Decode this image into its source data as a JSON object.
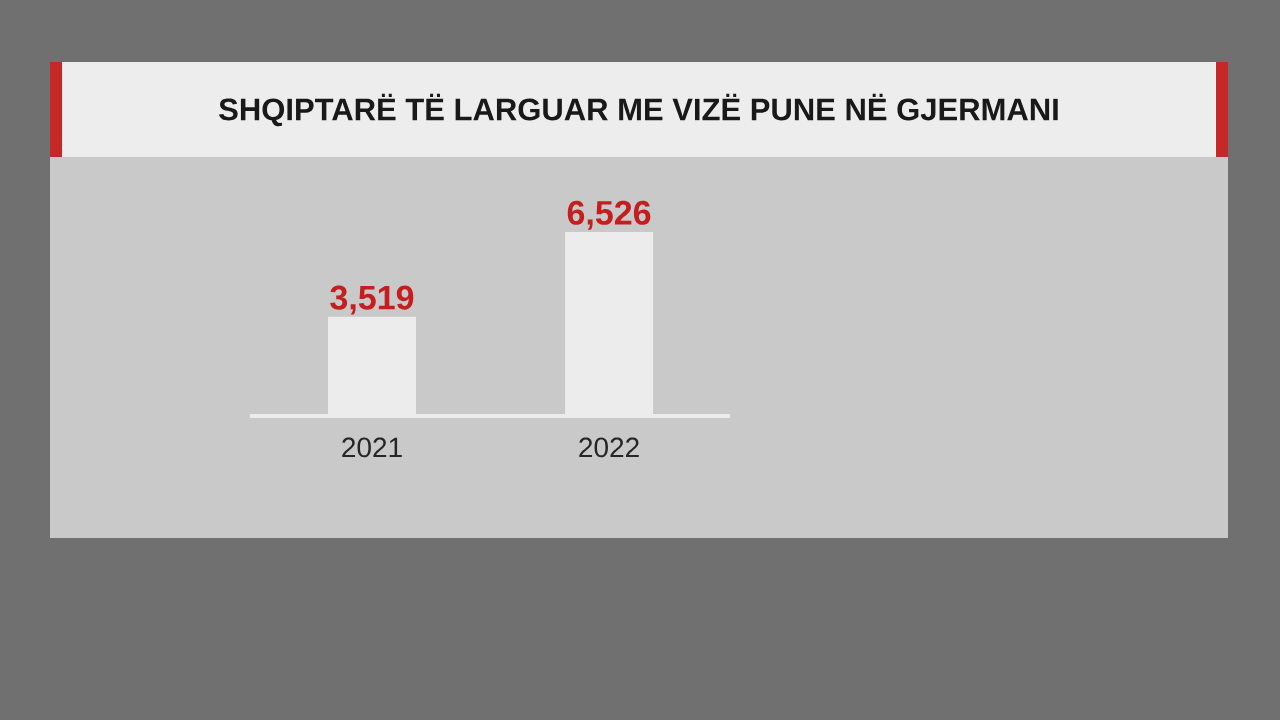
{
  "chart_data": {
    "type": "bar",
    "title": "SHQIPTARË TË LARGUAR ME VIZË PUNE NË GJERMANI",
    "categories": [
      "2021",
      "2022"
    ],
    "values": [
      3519,
      6526
    ],
    "value_labels": [
      "3,519",
      "6,526"
    ],
    "color": "#ececec"
  }
}
